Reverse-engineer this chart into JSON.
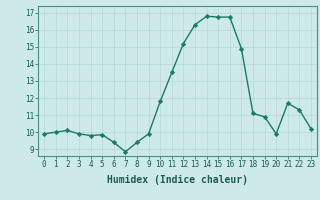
{
  "x": [
    0,
    1,
    2,
    3,
    4,
    5,
    6,
    7,
    8,
    9,
    10,
    11,
    12,
    13,
    14,
    15,
    16,
    17,
    18,
    19,
    20,
    21,
    22,
    23
  ],
  "y": [
    9.9,
    10.0,
    10.1,
    9.9,
    9.8,
    9.85,
    9.4,
    8.85,
    9.4,
    9.9,
    11.8,
    13.5,
    15.2,
    16.3,
    16.8,
    16.75,
    16.75,
    14.9,
    11.1,
    10.9,
    9.9,
    11.7,
    11.3,
    10.2
  ],
  "line_color": "#1a7a6a",
  "marker": "D",
  "marker_size": 2.2,
  "bg_color": "#cdeae8",
  "grid_color": "#b8d8d4",
  "xlabel": "Humidex (Indice chaleur)",
  "ylim": [
    8.6,
    17.4
  ],
  "xlim": [
    -0.5,
    23.5
  ],
  "yticks": [
    9,
    10,
    11,
    12,
    13,
    14,
    15,
    16,
    17
  ],
  "xticks": [
    0,
    1,
    2,
    3,
    4,
    5,
    6,
    7,
    8,
    9,
    10,
    11,
    12,
    13,
    14,
    15,
    16,
    17,
    18,
    19,
    20,
    21,
    22,
    23
  ],
  "tick_fontsize": 5.5,
  "xlabel_fontsize": 7,
  "line_width": 1.0
}
